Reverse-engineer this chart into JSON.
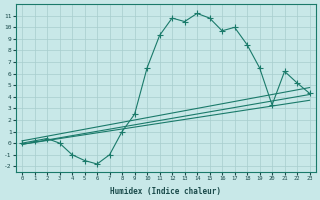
{
  "xlabel": "Humidex (Indice chaleur)",
  "ylabel": "",
  "bg_color": "#c8e8e8",
  "line_color": "#1a7a6a",
  "grid_color": "#a8cece",
  "xlim": [
    -0.5,
    23.5
  ],
  "ylim": [
    -2.5,
    12.0
  ],
  "xticks": [
    0,
    1,
    2,
    3,
    4,
    5,
    6,
    7,
    8,
    9,
    10,
    11,
    12,
    13,
    14,
    15,
    16,
    17,
    18,
    19,
    20,
    21,
    22,
    23
  ],
  "yticks": [
    -2,
    -1,
    0,
    1,
    2,
    3,
    4,
    5,
    6,
    7,
    8,
    9,
    10,
    11
  ],
  "main_x": [
    0,
    1,
    2,
    3,
    4,
    5,
    6,
    7,
    8,
    9,
    10,
    11,
    12,
    13,
    14,
    15,
    16,
    17,
    18,
    19,
    20,
    21,
    22,
    23
  ],
  "main_y": [
    0,
    0.2,
    0.4,
    0.0,
    -1.0,
    -1.5,
    -1.8,
    -1.0,
    1.0,
    2.5,
    6.5,
    9.3,
    10.8,
    10.5,
    11.2,
    10.8,
    9.7,
    10.0,
    8.5,
    6.5,
    3.3,
    6.2,
    5.2,
    4.3
  ],
  "reg_lines": [
    {
      "x": [
        0,
        23
      ],
      "y": [
        -0.1,
        3.7
      ]
    },
    {
      "x": [
        0,
        23
      ],
      "y": [
        -0.1,
        4.2
      ]
    },
    {
      "x": [
        0,
        23
      ],
      "y": [
        0.2,
        4.8
      ]
    }
  ]
}
